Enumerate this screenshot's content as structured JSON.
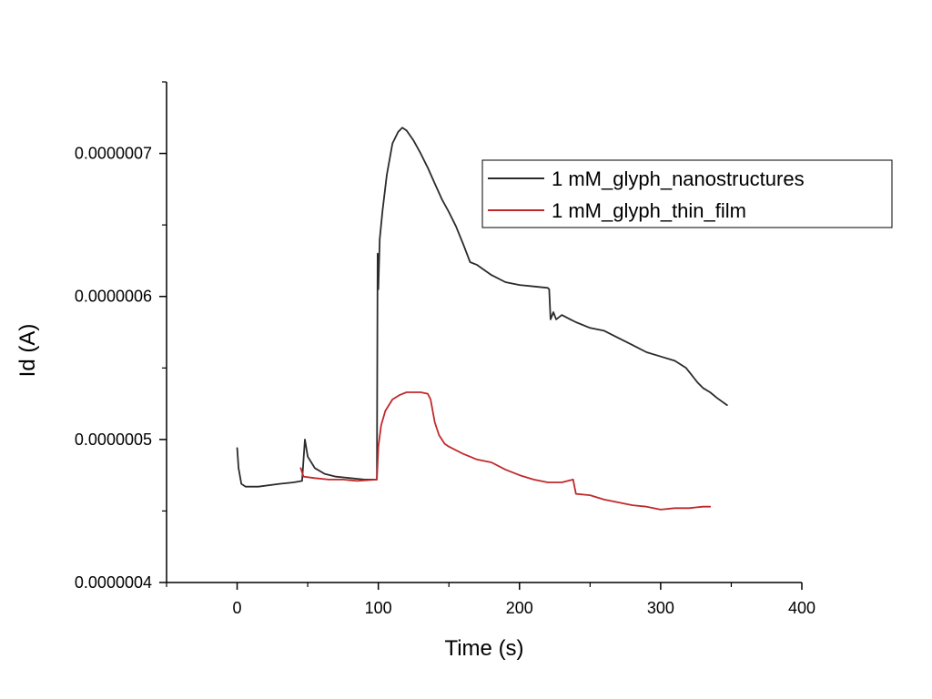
{
  "chart_data": {
    "type": "line",
    "title": "",
    "xlabel": "Time (s)",
    "ylabel": "Id (A)",
    "xlim": [
      -50,
      400
    ],
    "ylim": [
      4e-07,
      7.5e-07
    ],
    "x_ticks": [
      0,
      100,
      200,
      300,
      400
    ],
    "x_tick_labels": [
      "0",
      "100",
      "200",
      "300",
      "400"
    ],
    "y_ticks": [
      4e-07,
      5e-07,
      6e-07,
      7e-07
    ],
    "y_tick_labels": [
      "0.0000004",
      "0.0000005",
      "0.0000006",
      "0.0000007"
    ],
    "grid": false,
    "legend": "top-right",
    "series": [
      {
        "name": "1 mM_glyph_nanostructures",
        "color": "#2b2b2b",
        "points": [
          [
            0,
            4.94e-07
          ],
          [
            1,
            4.8e-07
          ],
          [
            3,
            4.69e-07
          ],
          [
            6,
            4.67e-07
          ],
          [
            15,
            4.67e-07
          ],
          [
            30,
            4.69e-07
          ],
          [
            40,
            4.7e-07
          ],
          [
            46,
            4.71e-07
          ],
          [
            48,
            5e-07
          ],
          [
            50,
            4.88e-07
          ],
          [
            55,
            4.8e-07
          ],
          [
            62,
            4.76e-07
          ],
          [
            70,
            4.74e-07
          ],
          [
            80,
            4.73e-07
          ],
          [
            90,
            4.72e-07
          ],
          [
            99,
            4.72e-07
          ],
          [
            99.5,
            6.3e-07
          ],
          [
            100,
            6.05e-07
          ],
          [
            101,
            6.4e-07
          ],
          [
            103,
            6.6e-07
          ],
          [
            106,
            6.85e-07
          ],
          [
            110,
            7.07e-07
          ],
          [
            114,
            7.15e-07
          ],
          [
            117,
            7.18e-07
          ],
          [
            120,
            7.16e-07
          ],
          [
            125,
            7.09e-07
          ],
          [
            130,
            7e-07
          ],
          [
            135,
            6.9e-07
          ],
          [
            140,
            6.79e-07
          ],
          [
            145,
            6.68e-07
          ],
          [
            150,
            6.59e-07
          ],
          [
            155,
            6.49e-07
          ],
          [
            160,
            6.37e-07
          ],
          [
            165,
            6.24e-07
          ],
          [
            170,
            6.22e-07
          ],
          [
            180,
            6.15e-07
          ],
          [
            190,
            6.1e-07
          ],
          [
            200,
            6.08e-07
          ],
          [
            210,
            6.07e-07
          ],
          [
            220,
            6.06e-07
          ],
          [
            221,
            6.05e-07
          ],
          [
            222,
            5.84e-07
          ],
          [
            224,
            5.89e-07
          ],
          [
            226,
            5.84e-07
          ],
          [
            230,
            5.87e-07
          ],
          [
            236,
            5.84e-07
          ],
          [
            240,
            5.82e-07
          ],
          [
            250,
            5.78e-07
          ],
          [
            260,
            5.76e-07
          ],
          [
            270,
            5.71e-07
          ],
          [
            280,
            5.66e-07
          ],
          [
            290,
            5.61e-07
          ],
          [
            300,
            5.58e-07
          ],
          [
            310,
            5.55e-07
          ],
          [
            318,
            5.5e-07
          ],
          [
            322,
            5.45e-07
          ],
          [
            326,
            5.4e-07
          ],
          [
            330,
            5.36e-07
          ],
          [
            335,
            5.33e-07
          ],
          [
            340,
            5.29e-07
          ],
          [
            347,
            5.24e-07
          ]
        ]
      },
      {
        "name": "1 mM_glyph_thin_film",
        "color": "#c0292b",
        "points": [
          [
            45,
            4.8e-07
          ],
          [
            47,
            4.74e-07
          ],
          [
            55,
            4.73e-07
          ],
          [
            65,
            4.72e-07
          ],
          [
            75,
            4.72e-07
          ],
          [
            85,
            4.71e-07
          ],
          [
            99,
            4.72e-07
          ],
          [
            100,
            4.95e-07
          ],
          [
            102,
            5.1e-07
          ],
          [
            105,
            5.2e-07
          ],
          [
            110,
            5.28e-07
          ],
          [
            115,
            5.31e-07
          ],
          [
            120,
            5.33e-07
          ],
          [
            125,
            5.33e-07
          ],
          [
            130,
            5.33e-07
          ],
          [
            135,
            5.32e-07
          ],
          [
            137,
            5.28e-07
          ],
          [
            140,
            5.12e-07
          ],
          [
            143,
            5.03e-07
          ],
          [
            147,
            4.97e-07
          ],
          [
            150,
            4.95e-07
          ],
          [
            160,
            4.9e-07
          ],
          [
            170,
            4.86e-07
          ],
          [
            180,
            4.84e-07
          ],
          [
            190,
            4.79e-07
          ],
          [
            200,
            4.75e-07
          ],
          [
            210,
            4.72e-07
          ],
          [
            220,
            4.7e-07
          ],
          [
            230,
            4.7e-07
          ],
          [
            238,
            4.72e-07
          ],
          [
            240,
            4.62e-07
          ],
          [
            250,
            4.61e-07
          ],
          [
            260,
            4.58e-07
          ],
          [
            270,
            4.56e-07
          ],
          [
            280,
            4.54e-07
          ],
          [
            290,
            4.53e-07
          ],
          [
            300,
            4.51e-07
          ],
          [
            310,
            4.52e-07
          ],
          [
            320,
            4.52e-07
          ],
          [
            330,
            4.53e-07
          ],
          [
            335,
            4.53e-07
          ]
        ]
      }
    ]
  }
}
